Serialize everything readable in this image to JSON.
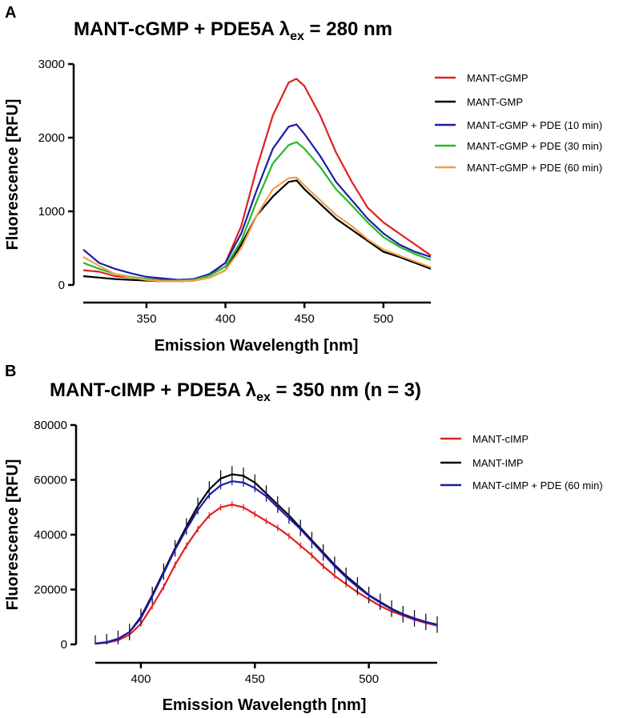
{
  "figure": {
    "colors": {
      "red": "#e02020",
      "black": "#000000",
      "blue": "#1c1ca8",
      "green": "#22bb22",
      "orange": "#f0a050"
    }
  },
  "chart_data": [
    {
      "panel": "A",
      "type": "line",
      "title_main": "MANT-cGMP + PDE5A ",
      "title_lambda": "λ",
      "title_sub": "ex",
      "title_rest": " = 280 nm",
      "xlabel": "Emission Wavelength [nm]",
      "ylabel": "Fluorescence [RFU]",
      "xlim": [
        310,
        530
      ],
      "ylim": [
        0,
        3000
      ],
      "xticks": [
        350,
        400,
        450,
        500
      ],
      "yticks": [
        0,
        1000,
        2000,
        3000
      ],
      "grid": false,
      "legend_position": "right",
      "series": [
        {
          "name": "MANT-cGMP",
          "color": "#e02020",
          "x": [
            310,
            320,
            330,
            340,
            350,
            360,
            370,
            380,
            390,
            400,
            410,
            420,
            430,
            440,
            445,
            450,
            460,
            470,
            480,
            490,
            500,
            510,
            520,
            530
          ],
          "y": [
            200,
            180,
            120,
            100,
            80,
            70,
            60,
            80,
            140,
            300,
            800,
            1600,
            2300,
            2750,
            2800,
            2700,
            2300,
            1800,
            1400,
            1050,
            850,
            700,
            550,
            400
          ]
        },
        {
          "name": "MANT-GMP",
          "color": "#000000",
          "x": [
            310,
            320,
            330,
            340,
            350,
            360,
            370,
            380,
            390,
            400,
            410,
            420,
            430,
            440,
            445,
            450,
            460,
            470,
            480,
            490,
            500,
            510,
            520,
            530
          ],
          "y": [
            120,
            100,
            80,
            70,
            60,
            50,
            50,
            60,
            100,
            200,
            550,
            950,
            1200,
            1400,
            1420,
            1300,
            1100,
            900,
            750,
            600,
            450,
            380,
            300,
            220
          ]
        },
        {
          "name": "MANT-cGMP + PDE (10 min)",
          "color": "#1c1ca8",
          "x": [
            310,
            320,
            330,
            340,
            350,
            360,
            370,
            380,
            390,
            400,
            410,
            420,
            430,
            440,
            445,
            450,
            460,
            470,
            480,
            490,
            500,
            510,
            520,
            530
          ],
          "y": [
            480,
            300,
            220,
            160,
            110,
            90,
            70,
            80,
            150,
            300,
            700,
            1300,
            1850,
            2150,
            2180,
            2050,
            1750,
            1400,
            1150,
            900,
            700,
            550,
            450,
            380
          ]
        },
        {
          "name": "MANT-cGMP + PDE (30 min)",
          "color": "#22bb22",
          "x": [
            310,
            320,
            330,
            340,
            350,
            360,
            370,
            380,
            390,
            400,
            410,
            420,
            430,
            440,
            445,
            450,
            460,
            470,
            480,
            490,
            500,
            510,
            520,
            530
          ],
          "y": [
            300,
            220,
            150,
            110,
            80,
            60,
            60,
            70,
            130,
            250,
            600,
            1150,
            1650,
            1900,
            1940,
            1850,
            1600,
            1300,
            1080,
            850,
            650,
            520,
            420,
            340
          ]
        },
        {
          "name": "MANT-cGMP + PDE (60 min)",
          "color": "#f0a050",
          "x": [
            310,
            320,
            330,
            340,
            350,
            360,
            370,
            380,
            390,
            400,
            410,
            420,
            430,
            440,
            445,
            450,
            460,
            470,
            480,
            490,
            500,
            510,
            520,
            530
          ],
          "y": [
            380,
            260,
            150,
            100,
            70,
            50,
            50,
            60,
            100,
            200,
            500,
            950,
            1300,
            1450,
            1460,
            1350,
            1150,
            950,
            800,
            620,
            480,
            400,
            320,
            240
          ]
        }
      ]
    },
    {
      "panel": "B",
      "type": "line",
      "title_main": "MANT-cIMP + PDE5A ",
      "title_lambda": "λ",
      "title_sub": "ex",
      "title_rest": " = 350 nm (n = 3)",
      "xlabel": "Emission Wavelength [nm]",
      "ylabel": "Fluorescence [RFU]",
      "xlim": [
        380,
        530
      ],
      "ylim": [
        0,
        80000
      ],
      "xticks": [
        400,
        450,
        500
      ],
      "yticks": [
        0,
        20000,
        40000,
        60000,
        80000
      ],
      "grid": false,
      "legend_position": "right",
      "error_bars": true,
      "series": [
        {
          "name": "MANT-cIMP",
          "color": "#e02020",
          "x": [
            380,
            385,
            390,
            395,
            400,
            405,
            410,
            415,
            420,
            425,
            430,
            435,
            440,
            445,
            450,
            455,
            460,
            465,
            470,
            475,
            480,
            485,
            490,
            495,
            500,
            505,
            510,
            515,
            520,
            525,
            530
          ],
          "y": [
            200,
            600,
            1500,
            3500,
            7500,
            14000,
            21000,
            29000,
            36000,
            42000,
            47000,
            50000,
            51000,
            50000,
            47500,
            45000,
            42500,
            39500,
            36000,
            32500,
            28500,
            25000,
            22000,
            19000,
            16500,
            14000,
            12000,
            10500,
            9000,
            7800,
            6800
          ],
          "err": 1200
        },
        {
          "name": "MANT-IMP",
          "color": "#000000",
          "x": [
            380,
            385,
            390,
            395,
            400,
            405,
            410,
            415,
            420,
            425,
            430,
            435,
            440,
            445,
            450,
            455,
            460,
            465,
            470,
            475,
            480,
            485,
            490,
            495,
            500,
            505,
            510,
            515,
            520,
            525,
            530
          ],
          "y": [
            300,
            800,
            2000,
            4500,
            10000,
            18000,
            26500,
            35000,
            43000,
            50500,
            56500,
            60500,
            62000,
            61500,
            59000,
            55000,
            51000,
            47000,
            42500,
            38000,
            33500,
            29000,
            25000,
            21500,
            18000,
            15500,
            13000,
            11000,
            9500,
            8200,
            7200
          ],
          "err": 3000
        },
        {
          "name": "MANT-cIMP + PDE (60 min)",
          "color": "#1c1ca8",
          "x": [
            380,
            385,
            390,
            395,
            400,
            405,
            410,
            415,
            420,
            425,
            430,
            435,
            440,
            445,
            450,
            455,
            460,
            465,
            470,
            475,
            480,
            485,
            490,
            495,
            500,
            505,
            510,
            515,
            520,
            525,
            530
          ],
          "y": [
            300,
            800,
            2000,
            4500,
            9500,
            17500,
            26000,
            34500,
            42000,
            49000,
            54500,
            58000,
            59500,
            59000,
            57000,
            54000,
            50000,
            46000,
            42000,
            37500,
            33000,
            28500,
            24500,
            21000,
            17800,
            15200,
            12800,
            10800,
            9300,
            8100,
            7100
          ],
          "err": 1500
        }
      ]
    }
  ]
}
